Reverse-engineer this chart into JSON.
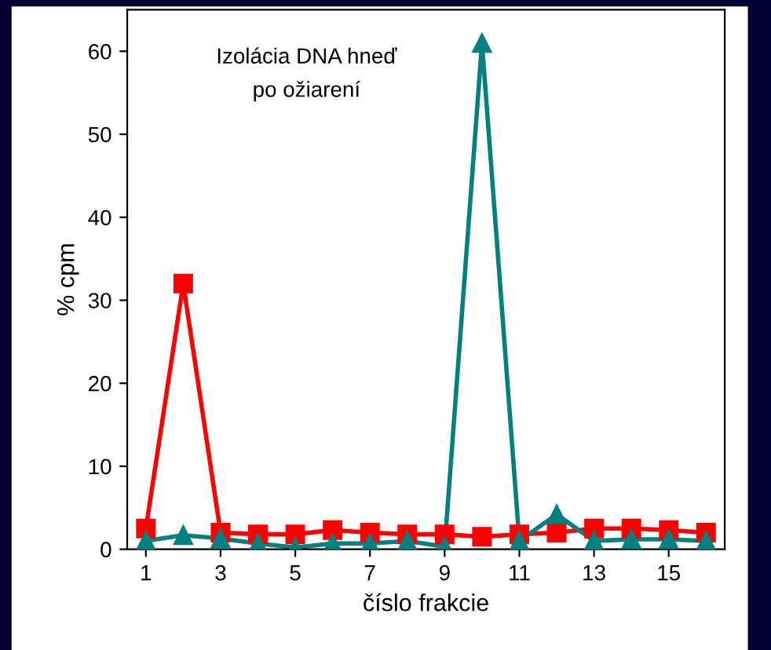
{
  "chart_data": {
    "type": "line",
    "xlabel": "číslo frakcie",
    "ylabel": "% cpm",
    "annotations": [
      "Izolácia DNA hneď\npo ožiarení"
    ],
    "x": [
      1,
      2,
      3,
      4,
      5,
      6,
      7,
      8,
      9,
      10,
      11,
      12,
      13,
      14,
      15,
      16
    ],
    "xlim": [
      0.5,
      16.5
    ],
    "xticks": [
      1,
      3,
      5,
      7,
      9,
      11,
      13,
      15
    ],
    "ylim": [
      0,
      65
    ],
    "yticks": [
      0,
      10,
      20,
      30,
      40,
      50,
      60
    ],
    "grid": false,
    "legend": false,
    "series": [
      {
        "color": "#ff0000",
        "marker": "square",
        "values": [
          2.5,
          32,
          2,
          1.8,
          1.8,
          2.3,
          2,
          1.8,
          1.8,
          1.5,
          1.8,
          2,
          2.5,
          2.5,
          2.3,
          2
        ]
      },
      {
        "color": "#008080",
        "marker": "triangle",
        "values": [
          1,
          1.7,
          1.3,
          0.7,
          0.2,
          0.7,
          0.7,
          1,
          0.3,
          61,
          1,
          4.2,
          1,
          1.2,
          1.2,
          1
        ]
      }
    ]
  }
}
